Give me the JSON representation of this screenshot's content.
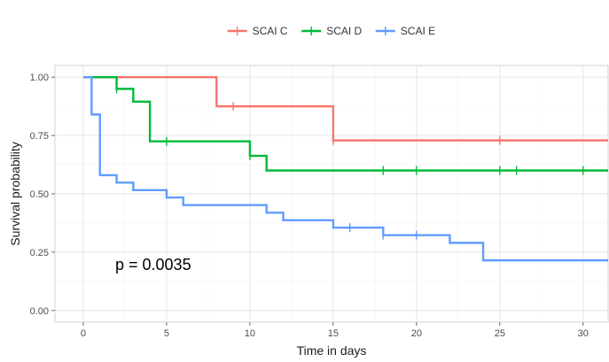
{
  "chart_data": {
    "type": "line",
    "subtype": "kaplan-meier step",
    "title": "",
    "xlabel": "Time in days",
    "ylabel": "Survival probability",
    "xlim": [
      -1.7,
      31.5
    ],
    "ylim": [
      -0.05,
      1.05
    ],
    "x_ticks": [
      0,
      5,
      10,
      15,
      20,
      25,
      30
    ],
    "x_tick_labels": [
      "0",
      "5",
      "10",
      "15",
      "20",
      "25",
      "30"
    ],
    "y_ticks": [
      0,
      0.25,
      0.5,
      0.75,
      1.0
    ],
    "y_tick_labels": [
      "0.00",
      "0.25",
      "0.50",
      "0.75",
      "1.00"
    ],
    "grid": true,
    "legend_position": "top-center",
    "annotation": "p = 0.0035",
    "series": [
      {
        "name": "SCAI C",
        "color": "#F8766D",
        "x": [
          0,
          8,
          15,
          31.5
        ],
        "y": [
          1.0,
          0.875,
          0.729,
          0.729
        ],
        "censor_x": [
          9,
          15,
          25
        ],
        "censor_y": [
          0.875,
          0.729,
          0.729
        ]
      },
      {
        "name": "SCAI D",
        "color": "#00BA38",
        "x": [
          0,
          2,
          3,
          4,
          10,
          11,
          31.5
        ],
        "y": [
          1.0,
          0.95,
          0.895,
          0.725,
          0.663,
          0.6,
          0.6
        ],
        "censor_x": [
          2,
          5,
          10,
          18,
          20,
          25,
          26,
          30
        ],
        "censor_y": [
          0.95,
          0.725,
          0.663,
          0.6,
          0.6,
          0.6,
          0.6,
          0.6
        ]
      },
      {
        "name": "SCAI E",
        "color": "#619CFF",
        "x": [
          0,
          0.5,
          1,
          2,
          3,
          5,
          6,
          11,
          12,
          15,
          18,
          22,
          24,
          31.5
        ],
        "y": [
          1.0,
          0.84,
          0.58,
          0.548,
          0.516,
          0.484,
          0.452,
          0.419,
          0.387,
          0.355,
          0.323,
          0.29,
          0.215,
          0.215
        ],
        "censor_x": [
          16,
          18,
          20
        ],
        "censor_y": [
          0.355,
          0.323,
          0.323
        ]
      }
    ]
  }
}
